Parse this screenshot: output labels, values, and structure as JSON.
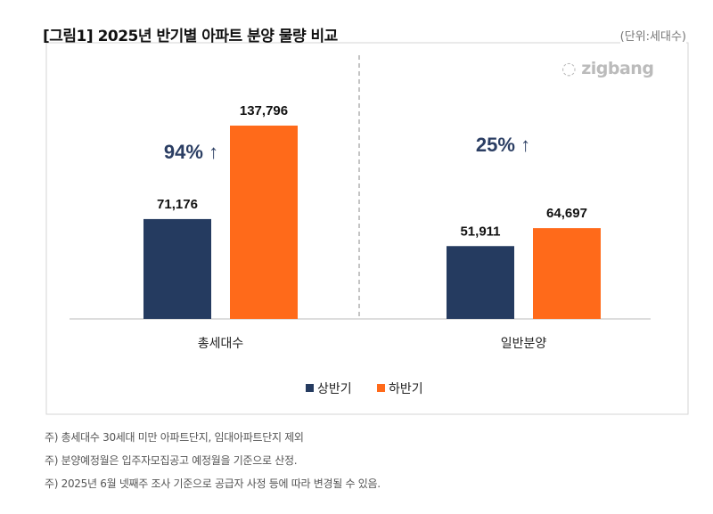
{
  "title": "[그림1] 2025년 반기별 아파트 분양 물량 비교",
  "unit": "(단위:세대수)",
  "logo": "zigbang",
  "notes": [
    "주) 총세대수 30세대 미만 아파트단지, 임대아파트단지 제외",
    "주) 분양예정월은 입주자모집공고 예정월을 기준으로 산정.",
    "주) 2025년 6월 넷째주 조사 기준으로 공급자 사정 등에 따라 변경될 수 있음."
  ],
  "chart_data": {
    "type": "bar",
    "categories": [
      "총세대수",
      "일반분양"
    ],
    "series": [
      {
        "name": "상반기",
        "values": [
          71176,
          51911
        ],
        "color": "#253b60"
      },
      {
        "name": "하반기",
        "values": [
          137796,
          64697
        ],
        "color": "#ff6a1a"
      }
    ],
    "value_labels": [
      [
        "71,176",
        "51,911"
      ],
      [
        "137,796",
        "64,697"
      ]
    ],
    "annotations": [
      "94% ↑",
      "25% ↑"
    ],
    "annotation_color": "#2b3e63",
    "ylim": [
      0,
      140000
    ],
    "grid": false,
    "legend": "bottom"
  }
}
